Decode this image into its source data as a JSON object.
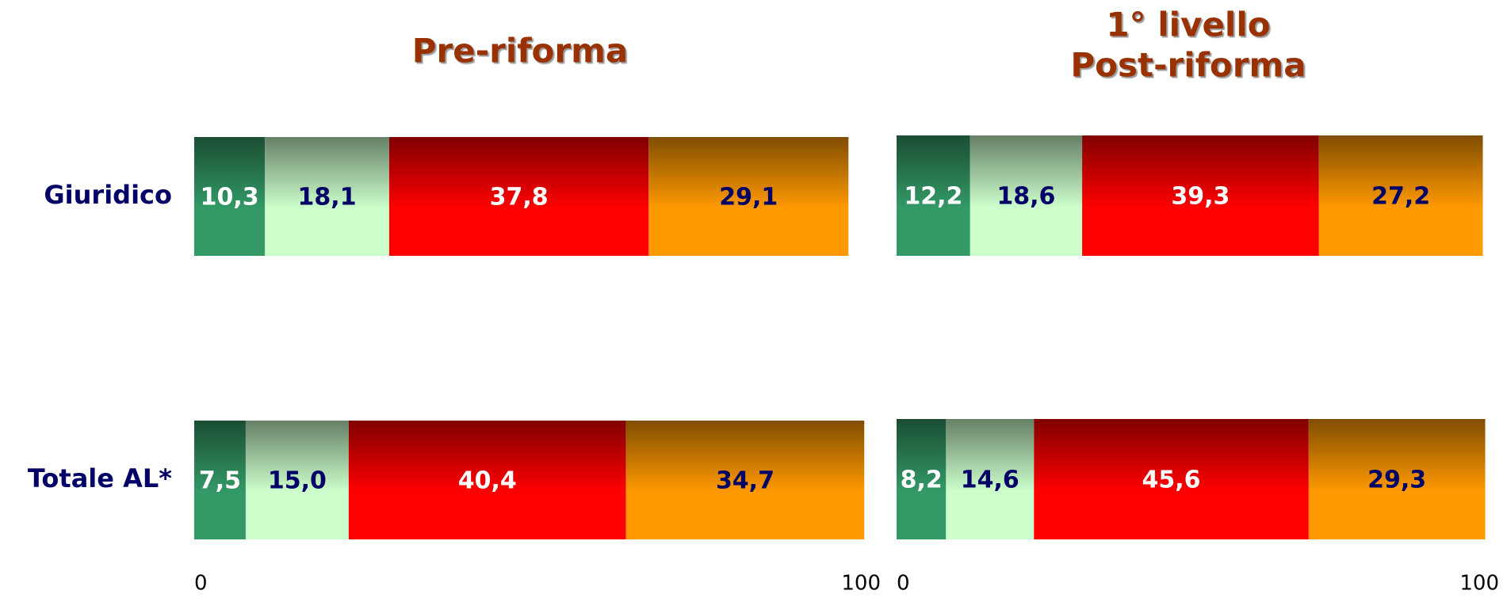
{
  "chart_data": [
    {
      "type": "bar",
      "orientation": "horizontal",
      "stacked": true,
      "title": [
        "Pre-riforma"
      ],
      "categories": [
        "Giuridico",
        "Totale AL*"
      ],
      "xlim": [
        0,
        100
      ],
      "xticks": [
        0,
        100
      ],
      "series": [
        {
          "color": "#339966",
          "label_color": "#ffffff",
          "values": [
            10.3,
            7.5
          ],
          "value_labels": [
            "10,3",
            "7,5"
          ]
        },
        {
          "color": "#ccffcc",
          "label_color": "#000066",
          "values": [
            18.1,
            15.0
          ],
          "value_labels": [
            "18,1",
            "15,0"
          ]
        },
        {
          "color": "#ff0000",
          "label_color": "#ffffff",
          "values": [
            37.8,
            40.4
          ],
          "value_labels": [
            "37,8",
            "40,4"
          ]
        },
        {
          "color": "#ff9900",
          "label_color": "#000066",
          "values": [
            29.1,
            34.7
          ],
          "value_labels": [
            "29,1",
            "34,7"
          ]
        }
      ]
    },
    {
      "type": "bar",
      "orientation": "horizontal",
      "stacked": true,
      "title": [
        "1° livello",
        "Post-riforma"
      ],
      "xlim": [
        0,
        100
      ],
      "xticks": [
        0,
        100
      ],
      "series": [
        {
          "color": "#339966",
          "label_color": "#ffffff",
          "values": [
            12.2,
            8.2
          ],
          "value_labels": [
            "12,2",
            "8,2"
          ]
        },
        {
          "color": "#ccffcc",
          "label_color": "#000066",
          "values": [
            18.6,
            14.6
          ],
          "value_labels": [
            "18,6",
            "14,6"
          ]
        },
        {
          "color": "#ff0000",
          "label_color": "#ffffff",
          "values": [
            39.3,
            45.6
          ],
          "value_labels": [
            "39,3",
            "45,6"
          ]
        },
        {
          "color": "#ff9900",
          "label_color": "#000066",
          "values": [
            27.2,
            29.3
          ],
          "value_labels": [
            "27,2",
            "29,3"
          ]
        }
      ]
    }
  ]
}
